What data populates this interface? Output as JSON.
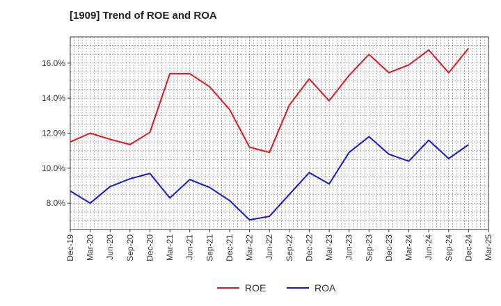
{
  "chart_data": {
    "type": "line",
    "title": "[1909]  Trend of ROE and ROA",
    "xlabel": "",
    "ylabel": "",
    "categories": [
      "Dec-19",
      "Mar-20",
      "Jun-20",
      "Sep-20",
      "Dec-20",
      "Mar-21",
      "Jun-21",
      "Sep-21",
      "Dec-21",
      "Mar-22",
      "Jun-22",
      "Sep-22",
      "Dec-22",
      "Mar-23",
      "Jun-23",
      "Sep-23",
      "Dec-23",
      "Mar-24",
      "Jun-24",
      "Sep-24",
      "Dec-24",
      "Mar-25"
    ],
    "yticks": [
      "8.0%",
      "10.0%",
      "12.0%",
      "14.0%",
      "16.0%"
    ],
    "ytick_values": [
      8,
      10,
      12,
      14,
      16
    ],
    "ylim": [
      6.5,
      17.5
    ],
    "grid": true,
    "legend_position": "bottom-center",
    "series": [
      {
        "name": "ROE",
        "color": "#e8141c",
        "values": [
          11.5,
          12.0,
          11.65,
          11.35,
          12.05,
          15.4,
          15.4,
          14.65,
          13.35,
          11.2,
          10.9,
          13.6,
          15.1,
          13.85,
          15.3,
          16.5,
          15.45,
          15.9,
          16.75,
          15.45,
          16.85,
          null
        ]
      },
      {
        "name": "ROA",
        "color": "#1414e6",
        "values": [
          8.7,
          8.0,
          8.95,
          9.4,
          9.7,
          8.3,
          9.35,
          8.9,
          8.15,
          7.05,
          7.25,
          8.5,
          9.75,
          9.1,
          10.9,
          11.8,
          10.8,
          10.4,
          11.6,
          10.55,
          11.35,
          null
        ]
      }
    ]
  }
}
